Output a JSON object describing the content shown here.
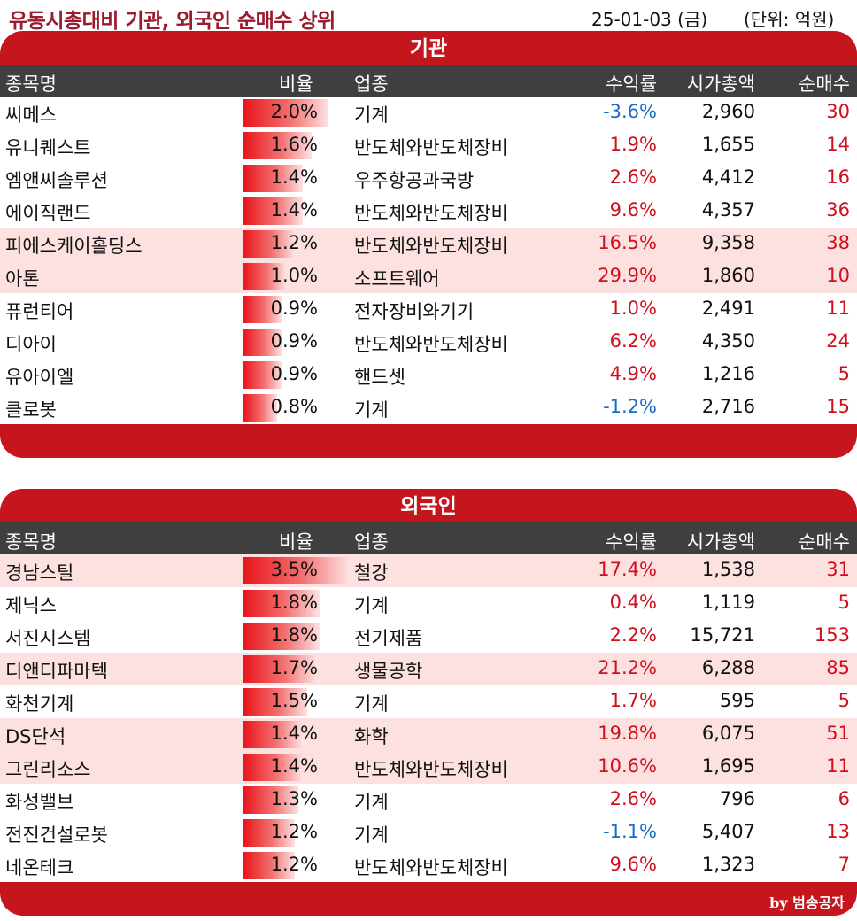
{
  "header": {
    "title": "유동시총대비 기관, 외국인 순매수 상위",
    "date": "25-01-03 (금)",
    "unit": "(단위: 억원)"
  },
  "columns": {
    "name": "종목명",
    "ratio": "비율",
    "industry": "업종",
    "return": "수익률",
    "market_cap": "시가총액",
    "net_buy": "순매수"
  },
  "institution": {
    "title": "기관",
    "rows": [
      {
        "name": "씨메스",
        "ratio": "2.0%",
        "ratio_value": 2.0,
        "industry": "기계",
        "return": "-3.6%",
        "market_cap": "2,960",
        "net_buy": "30",
        "highlight": false
      },
      {
        "name": "유니퀘스트",
        "ratio": "1.6%",
        "ratio_value": 1.6,
        "industry": "반도체와반도체장비",
        "return": "1.9%",
        "market_cap": "1,655",
        "net_buy": "14",
        "highlight": false
      },
      {
        "name": "엠앤씨솔루션",
        "ratio": "1.4%",
        "ratio_value": 1.4,
        "industry": "우주항공과국방",
        "return": "2.6%",
        "market_cap": "4,412",
        "net_buy": "16",
        "highlight": false
      },
      {
        "name": "에이직랜드",
        "ratio": "1.4%",
        "ratio_value": 1.4,
        "industry": "반도체와반도체장비",
        "return": "9.6%",
        "market_cap": "4,357",
        "net_buy": "36",
        "highlight": false
      },
      {
        "name": "피에스케이홀딩스",
        "ratio": "1.2%",
        "ratio_value": 1.2,
        "industry": "반도체와반도체장비",
        "return": "16.5%",
        "market_cap": "9,358",
        "net_buy": "38",
        "highlight": true
      },
      {
        "name": "아톤",
        "ratio": "1.0%",
        "ratio_value": 1.0,
        "industry": "소프트웨어",
        "return": "29.9%",
        "market_cap": "1,860",
        "net_buy": "10",
        "highlight": true
      },
      {
        "name": "퓨런티어",
        "ratio": "0.9%",
        "ratio_value": 0.9,
        "industry": "전자장비와기기",
        "return": "1.0%",
        "market_cap": "2,491",
        "net_buy": "11",
        "highlight": false
      },
      {
        "name": "디아이",
        "ratio": "0.9%",
        "ratio_value": 0.9,
        "industry": "반도체와반도체장비",
        "return": "6.2%",
        "market_cap": "4,350",
        "net_buy": "24",
        "highlight": false
      },
      {
        "name": "유아이엘",
        "ratio": "0.9%",
        "ratio_value": 0.9,
        "industry": "핸드셋",
        "return": "4.9%",
        "market_cap": "1,216",
        "net_buy": "5",
        "highlight": false
      },
      {
        "name": "클로봇",
        "ratio": "0.8%",
        "ratio_value": 0.8,
        "industry": "기계",
        "return": "-1.2%",
        "market_cap": "2,716",
        "net_buy": "15",
        "highlight": false
      }
    ]
  },
  "foreign": {
    "title": "외국인",
    "rows": [
      {
        "name": "경남스틸",
        "ratio": "3.5%",
        "ratio_value": 3.5,
        "industry": "철강",
        "return": "17.4%",
        "market_cap": "1,538",
        "net_buy": "31",
        "highlight": true
      },
      {
        "name": "제닉스",
        "ratio": "1.8%",
        "ratio_value": 1.8,
        "industry": "기계",
        "return": "0.4%",
        "market_cap": "1,119",
        "net_buy": "5",
        "highlight": false
      },
      {
        "name": "서진시스템",
        "ratio": "1.8%",
        "ratio_value": 1.8,
        "industry": "전기제품",
        "return": "2.2%",
        "market_cap": "15,721",
        "net_buy": "153",
        "highlight": false
      },
      {
        "name": "디앤디파마텍",
        "ratio": "1.7%",
        "ratio_value": 1.7,
        "industry": "생물공학",
        "return": "21.2%",
        "market_cap": "6,288",
        "net_buy": "85",
        "highlight": true
      },
      {
        "name": "화천기계",
        "ratio": "1.5%",
        "ratio_value": 1.5,
        "industry": "기계",
        "return": "1.7%",
        "market_cap": "595",
        "net_buy": "5",
        "highlight": false
      },
      {
        "name": "DS단석",
        "ratio": "1.4%",
        "ratio_value": 1.4,
        "industry": "화학",
        "return": "19.8%",
        "market_cap": "6,075",
        "net_buy": "51",
        "highlight": true
      },
      {
        "name": "그린리소스",
        "ratio": "1.4%",
        "ratio_value": 1.4,
        "industry": "반도체와반도체장비",
        "return": "10.6%",
        "market_cap": "1,695",
        "net_buy": "11",
        "highlight": true
      },
      {
        "name": "화성밸브",
        "ratio": "1.3%",
        "ratio_value": 1.3,
        "industry": "기계",
        "return": "2.6%",
        "market_cap": "796",
        "net_buy": "6",
        "highlight": false
      },
      {
        "name": "전진건설로봇",
        "ratio": "1.2%",
        "ratio_value": 1.2,
        "industry": "기계",
        "return": "-1.1%",
        "market_cap": "5,407",
        "net_buy": "13",
        "highlight": false
      },
      {
        "name": "네온테크",
        "ratio": "1.2%",
        "ratio_value": 1.2,
        "industry": "반도체와반도체장비",
        "return": "9.6%",
        "market_cap": "1,323",
        "net_buy": "7",
        "highlight": false
      }
    ]
  },
  "footer": {
    "credit": "by 범송공자"
  },
  "colors": {
    "band": "#c4161c",
    "header_row": "#3f3f3f",
    "highlight_row": "#fde0e0",
    "positive": "#d10f1c",
    "negative": "#1a6bc9",
    "title": "#9b1b2e"
  }
}
